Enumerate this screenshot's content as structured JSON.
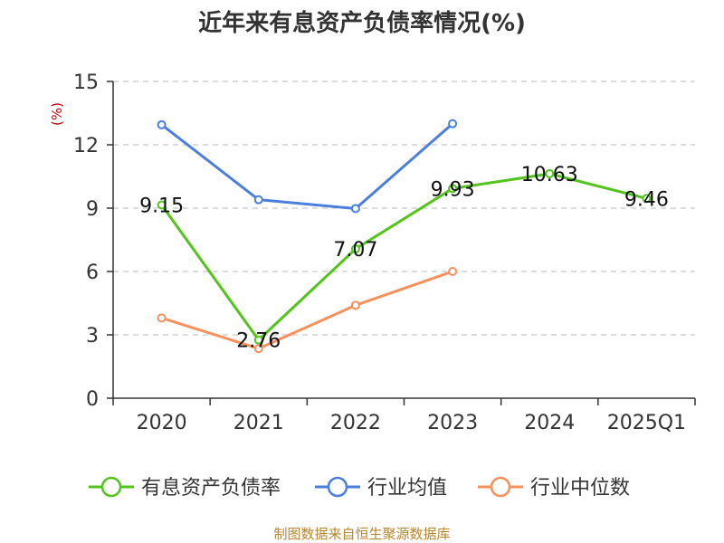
{
  "chart_data": {
    "type": "line",
    "title": "近年来有息资产负债率情况(%)",
    "ylabel": "(%)",
    "categories": [
      "2020",
      "2021",
      "2022",
      "2023",
      "2024",
      "2025Q1"
    ],
    "ylim": [
      0,
      15
    ],
    "yticks": [
      0,
      3,
      6,
      9,
      12,
      15
    ],
    "grid": true,
    "legend_position": "bottom",
    "series": [
      {
        "name": "有息资产负债率",
        "color": "#52c41a",
        "values": [
          9.15,
          2.76,
          7.07,
          9.93,
          10.63,
          9.46
        ],
        "labels": [
          "9.15",
          "2.76",
          "7.07",
          "9.93",
          "10.63",
          "9.46"
        ]
      },
      {
        "name": "行业均值",
        "color": "#4a7fdc",
        "values": [
          12.95,
          9.4,
          8.98,
          13.0,
          null,
          null
        ]
      },
      {
        "name": "行业中位数",
        "color": "#f7905a",
        "values": [
          3.8,
          2.35,
          4.4,
          6.0,
          null,
          null
        ]
      }
    ]
  },
  "source": "制图数据来自恒生聚源数据库"
}
